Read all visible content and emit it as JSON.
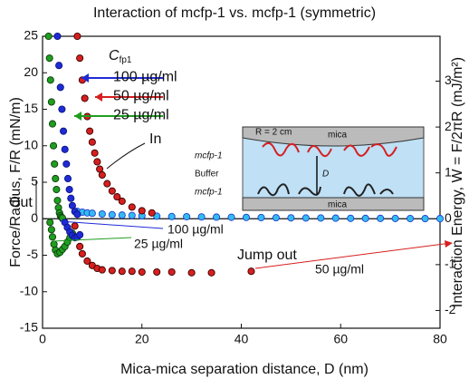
{
  "chart_data": {
    "type": "scatter",
    "title": "Interaction of mcfp-1 vs. mcfp-1 (symmetric)",
    "x_label": "Mica-mica separation distance, D (nm)",
    "y_label": "Force/Radius, F/R (mN/m)",
    "y2_label": "Interaction Energy, W = F/2πR (mJ/m²)",
    "xlim": [
      0,
      80
    ],
    "xticks": [
      0,
      20,
      40,
      60,
      80
    ],
    "ylim": [
      -15,
      25
    ],
    "yticks": [
      -15,
      -10,
      -5,
      0,
      5,
      10,
      15,
      20,
      25
    ],
    "y2lim": [
      -2.387,
      3.979
    ],
    "y2ticks": [
      -2,
      -1,
      0,
      1,
      2,
      3
    ],
    "legend_title": "C",
    "legend_title_subscript": "fp1",
    "series": [
      {
        "name": "100 µg/ml",
        "color": "#1f2bd6",
        "x": [
          3,
          3.3,
          3.6,
          3.9,
          4.2,
          4.5,
          4.8,
          5.1,
          5.4,
          5.7,
          6,
          6.5,
          7,
          4.5,
          5,
          5.5,
          6,
          6.5,
          7,
          7.5
        ],
        "values": [
          25,
          21,
          18,
          15,
          12,
          9.5,
          7.5,
          5.5,
          4,
          2.8,
          1.8,
          1,
          0.6,
          -0.5,
          -1.2,
          -1.8,
          -2.3,
          -2.6,
          -2.5,
          -2.2
        ]
      },
      {
        "name": "50 µg/ml",
        "color": "#d61f1f",
        "x": [
          7,
          7.5,
          8,
          8.5,
          9,
          9.5,
          10,
          10.5,
          11,
          11.5,
          12,
          13,
          14,
          15,
          16,
          18,
          20,
          22,
          6.5,
          7,
          7.5,
          8,
          9,
          10,
          11,
          12,
          14,
          16,
          18,
          20,
          23,
          26,
          30,
          34,
          42
        ],
        "values": [
          25,
          22,
          19,
          16.5,
          14,
          12,
          10.5,
          9,
          7.8,
          6.8,
          6,
          4.8,
          3.8,
          3,
          2.4,
          1.6,
          1.1,
          0.8,
          -1,
          -2.5,
          -3.8,
          -4.8,
          -5.8,
          -6.4,
          -6.8,
          -7,
          -7.1,
          -7.2,
          -7.2,
          -7.3,
          -7.3,
          -7.3,
          -7.4,
          -7.4,
          -7.2
        ]
      },
      {
        "name": "25 µg/ml",
        "color": "#1f9e1f",
        "x": [
          1.2,
          1.4,
          1.6,
          1.8,
          2,
          2.2,
          2.4,
          2.6,
          2.8,
          3,
          3.2,
          3.4,
          3.6,
          3.8,
          4,
          1.5,
          1.8,
          2,
          2.3,
          2.6,
          3,
          3.5,
          4,
          4.5,
          5,
          5.5,
          6
        ],
        "values": [
          25,
          22,
          19,
          16,
          13,
          10,
          7.5,
          5.5,
          4,
          2.5,
          1.5,
          0.8,
          0.4,
          0.2,
          0.1,
          -0.5,
          -1.5,
          -2.5,
          -3.5,
          -4.3,
          -4.8,
          -4.6,
          -4.2,
          -3.8,
          -3.2,
          -2.6,
          -2
        ]
      }
    ],
    "approach_series": {
      "color": "#33bbee",
      "x": [
        7,
        8,
        9,
        10,
        12,
        14,
        16,
        18,
        20,
        23,
        26,
        29,
        32,
        35,
        38,
        41,
        44,
        47,
        50,
        53,
        56,
        59,
        62,
        65,
        68,
        71,
        74,
        77,
        80
      ],
      "values": [
        1,
        0.9,
        0.8,
        0.75,
        0.65,
        0.55,
        0.5,
        0.45,
        0.4,
        0.35,
        0.3,
        0.28,
        0.25,
        0.22,
        0.2,
        0.18,
        0.16,
        0.14,
        0.12,
        0.1,
        0.1,
        0.08,
        0.06,
        0.05,
        0.05,
        0.04,
        0.03,
        0.02,
        0.02
      ]
    },
    "annotations": [
      {
        "text": "In",
        "color": "#111111"
      },
      {
        "text": "Out",
        "color": "#111111"
      },
      {
        "text": "100 µg/ml",
        "color": "#1f2bd6"
      },
      {
        "text": "25 µg/ml",
        "color": "#1f9e1f"
      },
      {
        "text": "Jump out",
        "color": "#111111"
      },
      {
        "text": "50 µg/ml",
        "color": "#d61f1f"
      }
    ],
    "inset": {
      "radius": "R = 2 cm",
      "mica_top": "mica",
      "protein_top": "mcfp-1",
      "buffer": "Buffer",
      "distance": "D",
      "protein_bottom": "mcfp-1",
      "mica_bottom": "mica"
    }
  }
}
